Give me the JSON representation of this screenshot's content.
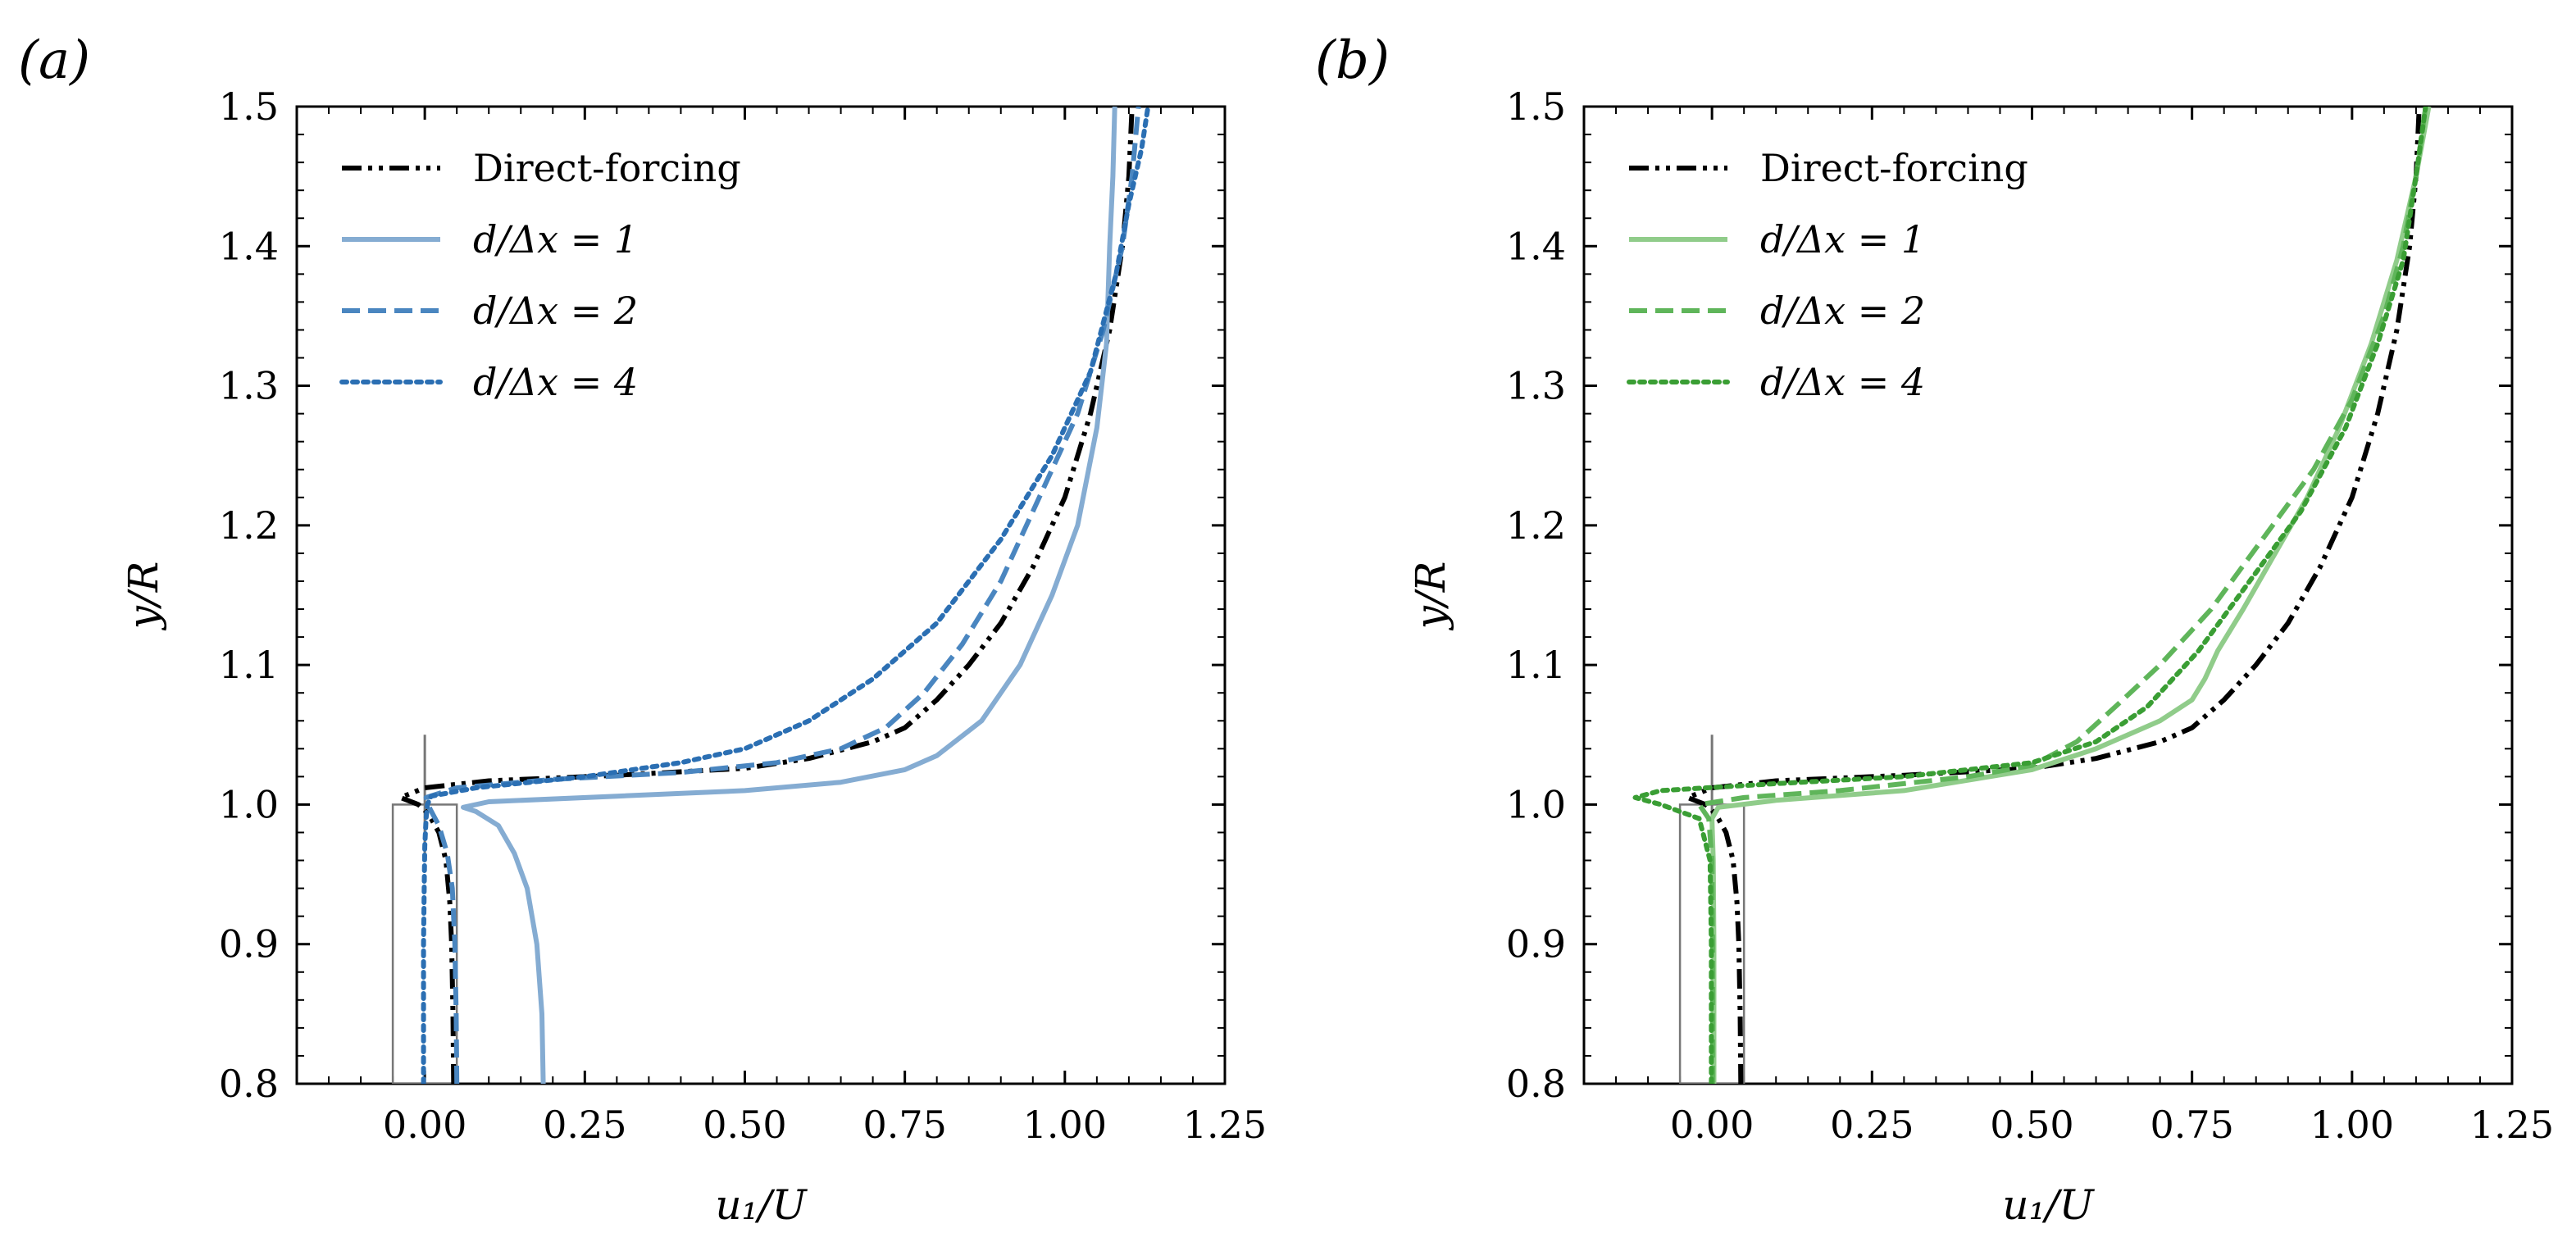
{
  "chart_data": [
    {
      "panel_label": "(a)",
      "type": "line",
      "xlabel": "u₁/U",
      "ylabel": "y/R",
      "xlim": [
        -0.2,
        1.25
      ],
      "ylim": [
        0.8,
        1.5
      ],
      "xticks": [
        0.0,
        0.25,
        0.5,
        0.75,
        1.0,
        1.25
      ],
      "xtick_labels": [
        "0.00",
        "0.25",
        "0.50",
        "0.75",
        "1.00",
        "1.25"
      ],
      "yticks": [
        0.8,
        0.9,
        1.0,
        1.1,
        1.2,
        1.3,
        1.4,
        1.5
      ],
      "ytick_labels": [
        "0.8",
        "0.9",
        "1.0",
        "1.1",
        "1.2",
        "1.3",
        "1.4",
        "1.5"
      ],
      "legend_position": "top-left",
      "inset_box": {
        "x": [
          -0.05,
          0.05
        ],
        "y": [
          0.8,
          1.0
        ]
      },
      "marker_line": {
        "x": 0.0,
        "y": [
          0.96,
          1.05
        ],
        "color": "#777777"
      },
      "series": [
        {
          "name": "Direct-forcing",
          "color": "#000000",
          "style": "dashdotdot",
          "points": [
            [
              0.045,
              0.8
            ],
            [
              0.044,
              0.85
            ],
            [
              0.042,
              0.9
            ],
            [
              0.039,
              0.93
            ],
            [
              0.033,
              0.96
            ],
            [
              0.022,
              0.98
            ],
            [
              0.01,
              0.99
            ],
            [
              0.0,
              0.996
            ],
            [
              -0.01,
              1.0
            ],
            [
              -0.038,
              1.005
            ],
            [
              0.0,
              1.012
            ],
            [
              0.1,
              1.017
            ],
            [
              0.3,
              1.021
            ],
            [
              0.5,
              1.026
            ],
            [
              0.6,
              1.033
            ],
            [
              0.7,
              1.045
            ],
            [
              0.75,
              1.055
            ],
            [
              0.8,
              1.075
            ],
            [
              0.85,
              1.1
            ],
            [
              0.9,
              1.13
            ],
            [
              0.95,
              1.17
            ],
            [
              1.0,
              1.22
            ],
            [
              1.04,
              1.28
            ],
            [
              1.07,
              1.34
            ],
            [
              1.09,
              1.4
            ],
            [
              1.1,
              1.45
            ],
            [
              1.105,
              1.5
            ]
          ]
        },
        {
          "name": "d/Δx = 1",
          "color": "#85acd2",
          "style": "solid",
          "points": [
            [
              0.185,
              0.8
            ],
            [
              0.183,
              0.85
            ],
            [
              0.175,
              0.9
            ],
            [
              0.16,
              0.94
            ],
            [
              0.14,
              0.965
            ],
            [
              0.115,
              0.985
            ],
            [
              0.08,
              0.995
            ],
            [
              0.06,
              0.998
            ],
            [
              0.1,
              1.002
            ],
            [
              0.3,
              1.006
            ],
            [
              0.5,
              1.01
            ],
            [
              0.65,
              1.016
            ],
            [
              0.75,
              1.025
            ],
            [
              0.8,
              1.035
            ],
            [
              0.87,
              1.06
            ],
            [
              0.93,
              1.1
            ],
            [
              0.98,
              1.15
            ],
            [
              1.02,
              1.2
            ],
            [
              1.05,
              1.27
            ],
            [
              1.065,
              1.33
            ],
            [
              1.07,
              1.4
            ],
            [
              1.075,
              1.45
            ],
            [
              1.078,
              1.5
            ]
          ]
        },
        {
          "name": "d/Δx = 2",
          "color": "#4a86c0",
          "style": "dashed",
          "points": [
            [
              0.05,
              0.8
            ],
            [
              0.049,
              0.85
            ],
            [
              0.047,
              0.9
            ],
            [
              0.043,
              0.94
            ],
            [
              0.035,
              0.965
            ],
            [
              0.022,
              0.985
            ],
            [
              0.008,
              0.997
            ],
            [
              0.002,
              1.005
            ],
            [
              0.05,
              1.012
            ],
            [
              0.2,
              1.018
            ],
            [
              0.4,
              1.023
            ],
            [
              0.55,
              1.03
            ],
            [
              0.65,
              1.04
            ],
            [
              0.72,
              1.055
            ],
            [
              0.78,
              1.08
            ],
            [
              0.84,
              1.115
            ],
            [
              0.9,
              1.16
            ],
            [
              0.96,
              1.22
            ],
            [
              1.02,
              1.28
            ],
            [
              1.06,
              1.34
            ],
            [
              1.09,
              1.4
            ],
            [
              1.105,
              1.45
            ],
            [
              1.115,
              1.5
            ]
          ]
        },
        {
          "name": "d/Δx = 4",
          "color": "#2b6fb3",
          "style": "dotted",
          "points": [
            [
              -0.002,
              0.8
            ],
            [
              -0.002,
              0.85
            ],
            [
              -0.002,
              0.9
            ],
            [
              -0.001,
              0.94
            ],
            [
              0.0,
              0.97
            ],
            [
              0.002,
              0.99
            ],
            [
              0.004,
              1.0
            ],
            [
              0.01,
              1.006
            ],
            [
              0.08,
              1.012
            ],
            [
              0.25,
              1.02
            ],
            [
              0.4,
              1.03
            ],
            [
              0.5,
              1.04
            ],
            [
              0.6,
              1.06
            ],
            [
              0.7,
              1.09
            ],
            [
              0.8,
              1.13
            ],
            [
              0.9,
              1.19
            ],
            [
              0.98,
              1.25
            ],
            [
              1.04,
              1.31
            ],
            [
              1.08,
              1.38
            ],
            [
              1.1,
              1.43
            ],
            [
              1.12,
              1.47
            ],
            [
              1.13,
              1.5
            ]
          ]
        }
      ]
    },
    {
      "panel_label": "(b)",
      "type": "line",
      "xlabel": "u₁/U",
      "ylabel": "y/R",
      "xlim": [
        -0.2,
        1.25
      ],
      "ylim": [
        0.8,
        1.5
      ],
      "xticks": [
        0.0,
        0.25,
        0.5,
        0.75,
        1.0,
        1.25
      ],
      "xtick_labels": [
        "0.00",
        "0.25",
        "0.50",
        "0.75",
        "1.00",
        "1.25"
      ],
      "yticks": [
        0.8,
        0.9,
        1.0,
        1.1,
        1.2,
        1.3,
        1.4,
        1.5
      ],
      "ytick_labels": [
        "0.8",
        "0.9",
        "1.0",
        "1.1",
        "1.2",
        "1.3",
        "1.4",
        "1.5"
      ],
      "legend_position": "top-left",
      "inset_box": {
        "x": [
          -0.05,
          0.05
        ],
        "y": [
          0.8,
          1.0
        ]
      },
      "marker_line": {
        "x": 0.0,
        "y": [
          0.96,
          1.05
        ],
        "color": "#777777"
      },
      "series": [
        {
          "name": "Direct-forcing",
          "color": "#000000",
          "style": "dashdotdot",
          "points": [
            [
              0.045,
              0.8
            ],
            [
              0.044,
              0.85
            ],
            [
              0.042,
              0.9
            ],
            [
              0.039,
              0.93
            ],
            [
              0.033,
              0.96
            ],
            [
              0.022,
              0.98
            ],
            [
              0.01,
              0.99
            ],
            [
              0.0,
              0.996
            ],
            [
              -0.01,
              1.0
            ],
            [
              -0.038,
              1.005
            ],
            [
              0.0,
              1.012
            ],
            [
              0.1,
              1.017
            ],
            [
              0.3,
              1.021
            ],
            [
              0.5,
              1.026
            ],
            [
              0.6,
              1.033
            ],
            [
              0.7,
              1.045
            ],
            [
              0.75,
              1.055
            ],
            [
              0.8,
              1.075
            ],
            [
              0.85,
              1.1
            ],
            [
              0.9,
              1.13
            ],
            [
              0.95,
              1.17
            ],
            [
              1.0,
              1.22
            ],
            [
              1.04,
              1.28
            ],
            [
              1.07,
              1.34
            ],
            [
              1.09,
              1.4
            ],
            [
              1.1,
              1.45
            ],
            [
              1.105,
              1.5
            ]
          ]
        },
        {
          "name": "d/Δx = 1",
          "color": "#90cc8a",
          "style": "solid",
          "points": [
            [
              0.003,
              0.8
            ],
            [
              0.003,
              0.9
            ],
            [
              0.002,
              0.96
            ],
            [
              0.0,
              0.99
            ],
            [
              0.01,
              0.998
            ],
            [
              0.1,
              1.003
            ],
            [
              0.3,
              1.01
            ],
            [
              0.5,
              1.025
            ],
            [
              0.6,
              1.04
            ],
            [
              0.7,
              1.06
            ],
            [
              0.75,
              1.075
            ],
            [
              0.77,
              1.09
            ],
            [
              0.79,
              1.11
            ],
            [
              0.83,
              1.14
            ],
            [
              0.88,
              1.18
            ],
            [
              0.93,
              1.22
            ],
            [
              0.98,
              1.27
            ],
            [
              1.03,
              1.33
            ],
            [
              1.07,
              1.39
            ],
            [
              1.1,
              1.45
            ],
            [
              1.12,
              1.5
            ]
          ]
        },
        {
          "name": "d/Δx = 2",
          "color": "#5fb55a",
          "style": "dashed",
          "points": [
            [
              0.001,
              0.8
            ],
            [
              0.001,
              0.9
            ],
            [
              0.0,
              0.96
            ],
            [
              -0.005,
              0.99
            ],
            [
              -0.02,
              1.0
            ],
            [
              0.05,
              1.005
            ],
            [
              0.2,
              1.01
            ],
            [
              0.4,
              1.02
            ],
            [
              0.5,
              1.028
            ],
            [
              0.57,
              1.045
            ],
            [
              0.63,
              1.07
            ],
            [
              0.7,
              1.1
            ],
            [
              0.78,
              1.14
            ],
            [
              0.86,
              1.19
            ],
            [
              0.94,
              1.24
            ],
            [
              1.0,
              1.29
            ],
            [
              1.05,
              1.35
            ],
            [
              1.08,
              1.4
            ],
            [
              1.1,
              1.45
            ],
            [
              1.115,
              1.5
            ]
          ]
        },
        {
          "name": "d/Δx = 4",
          "color": "#3a9e34",
          "style": "dotted",
          "points": [
            [
              -0.001,
              0.8
            ],
            [
              -0.001,
              0.9
            ],
            [
              -0.003,
              0.96
            ],
            [
              -0.02,
              0.99
            ],
            [
              -0.08,
              1.0
            ],
            [
              -0.12,
              1.005
            ],
            [
              -0.08,
              1.01
            ],
            [
              0.1,
              1.015
            ],
            [
              0.3,
              1.02
            ],
            [
              0.5,
              1.03
            ],
            [
              0.6,
              1.045
            ],
            [
              0.68,
              1.07
            ],
            [
              0.76,
              1.11
            ],
            [
              0.84,
              1.16
            ],
            [
              0.92,
              1.21
            ],
            [
              0.99,
              1.27
            ],
            [
              1.04,
              1.33
            ],
            [
              1.08,
              1.39
            ],
            [
              1.1,
              1.45
            ],
            [
              1.115,
              1.5
            ]
          ]
        }
      ]
    }
  ]
}
